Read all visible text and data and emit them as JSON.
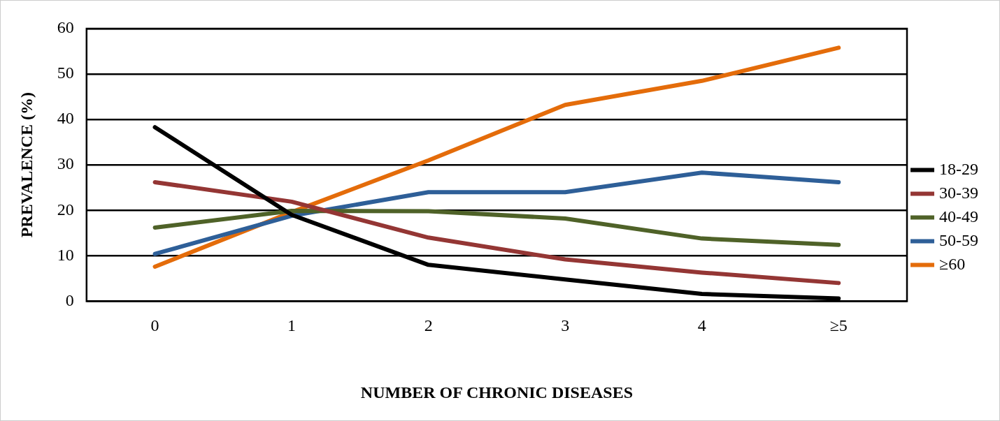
{
  "chart_data": {
    "type": "line",
    "xlabel": "NUMBER OF CHRONIC DISEASES",
    "ylabel": "PREVALENCE (%)",
    "categories": [
      "0",
      "1",
      "2",
      "3",
      "4",
      "≥5"
    ],
    "ylim": [
      0,
      60
    ],
    "yticks": [
      0,
      10,
      20,
      30,
      40,
      50,
      60
    ],
    "grid": "y",
    "legend": "right",
    "marker": "none",
    "line_style": "solid",
    "series": [
      {
        "name": "18-29",
        "color": "#000000",
        "values": [
          38.3,
          19,
          8,
          4.8,
          1.6,
          0.6
        ]
      },
      {
        "name": "30-39",
        "color": "#943634",
        "values": [
          26.2,
          21.9,
          14,
          9.2,
          6.3,
          4
        ]
      },
      {
        "name": "40-49",
        "color": "#4f6228",
        "values": [
          16.2,
          19.9,
          19.8,
          18.2,
          13.8,
          12.4
        ]
      },
      {
        "name": "50-59",
        "color": "#2e5f98",
        "values": [
          10.4,
          18.8,
          24,
          24,
          28.3,
          26.2
        ]
      },
      {
        "name": "≥60",
        "color": "#e46c0a",
        "values": [
          7.6,
          19.6,
          31,
          43.2,
          48.5,
          55.8
        ]
      }
    ]
  }
}
